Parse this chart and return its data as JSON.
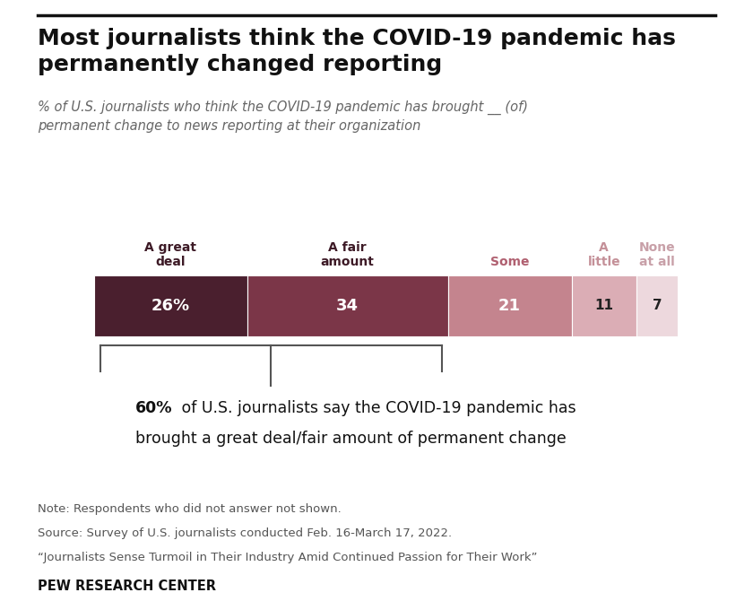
{
  "title": "Most journalists think the COVID-19 pandemic has\npermanently changed reporting",
  "subtitle": "% of U.S. journalists who think the COVID-19 pandemic has brought __ (of)\npermanent change to news reporting at their organization",
  "categories": [
    "A great\ndeal",
    "A fair\namount",
    "Some",
    "A\nlittle",
    "None\nat all"
  ],
  "values": [
    26,
    34,
    21,
    11,
    7
  ],
  "bar_colors": [
    "#4a1f2e",
    "#7b3648",
    "#c4848e",
    "#dbadb5",
    "#edd8dd"
  ],
  "label_colors": [
    "#ffffff",
    "#ffffff",
    "#ffffff",
    "#222222",
    "#222222"
  ],
  "header_colors": [
    "#3d1a26",
    "#3d1a26",
    "#b06070",
    "#c49098",
    "#c8a0a8"
  ],
  "value_labels": [
    "26%",
    "34",
    "21",
    "11",
    "7"
  ],
  "annotation_bold": "60%",
  "note_line1": "Note: Respondents who did not answer not shown.",
  "note_line2": "Source: Survey of U.S. journalists conducted Feb. 16-March 17, 2022.",
  "note_line3": "“Journalists Sense Turmoil in Their Industry Amid Continued Passion for Their Work”",
  "source_label": "PEW RESEARCH CENTER",
  "bg_color": "#ffffff",
  "top_bar_color": "#333333"
}
